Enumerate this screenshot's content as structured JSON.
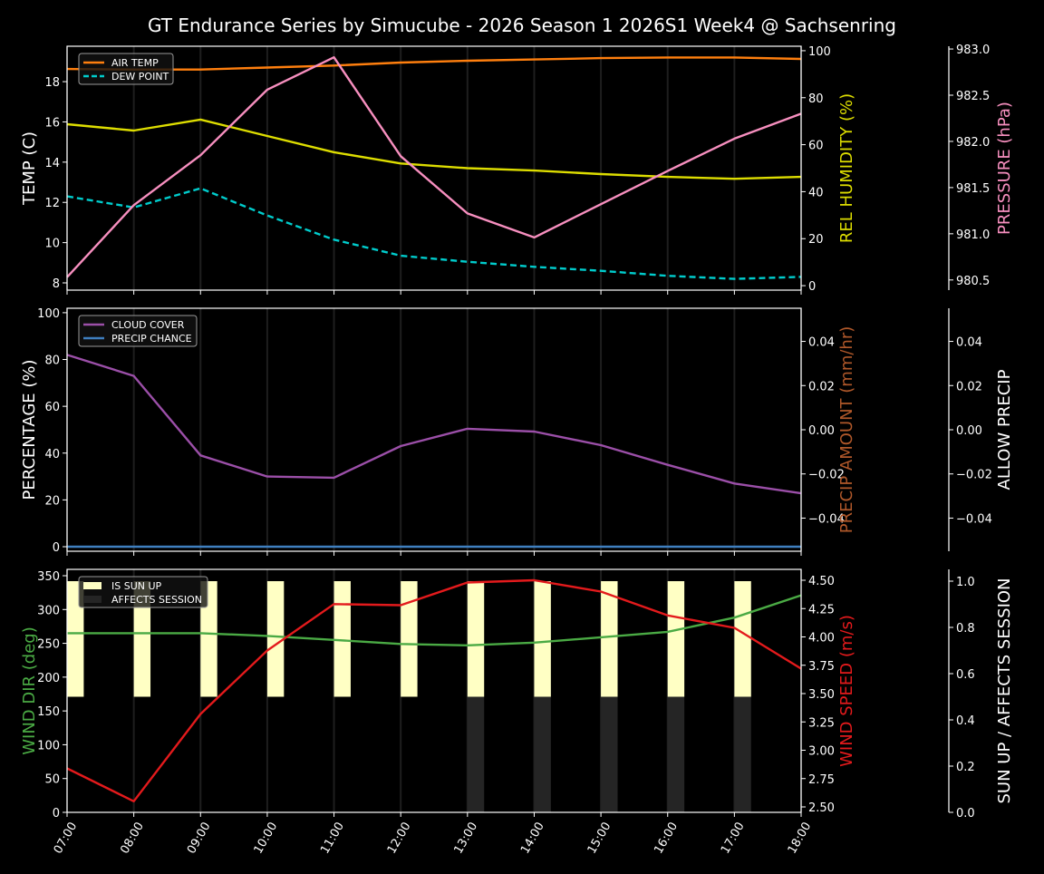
{
  "chart_data": {
    "title": "GT Endurance Series by Simucube - 2026 Season 1 2026S1 Week4 @ Sachsenring",
    "x_ticks": [
      "07:00",
      "08:00",
      "09:00",
      "10:00",
      "11:00",
      "12:00",
      "13:00",
      "14:00",
      "15:00",
      "16:00",
      "17:00",
      "18:00"
    ],
    "panels": [
      {
        "type": "line",
        "axes": [
          {
            "label": "TEMP (C)",
            "color": "#ffffff",
            "ylim": [
              7.64,
              19.76
            ],
            "ticks": [
              8,
              10,
              12,
              14,
              16,
              18
            ],
            "tick_labels": [
              "8",
              "10",
              "12",
              "14",
              "16",
              "18"
            ]
          },
          {
            "label": "REL HUMIDITY (%)",
            "color": "#dddd00",
            "ylim": [
              -1.9,
              101.9
            ],
            "ticks": [
              0,
              20,
              40,
              60,
              80,
              100
            ],
            "tick_labels": [
              "0",
              "20",
              "40",
              "60",
              "80",
              "100"
            ]
          },
          {
            "label": "PRESSURE (hPa)",
            "color": "#f78fbf",
            "ylim": [
              980.39,
              983.03
            ],
            "ticks": [
              980.5,
              981.0,
              981.5,
              982.0,
              982.5,
              983.0
            ],
            "tick_labels": [
              "980.5",
              "981.0",
              "981.5",
              "982.0",
              "982.5",
              "983.0"
            ]
          }
        ],
        "series": [
          {
            "name": "AIR TEMP",
            "axis": 0,
            "color": "#ff7f0e",
            "dash": false,
            "values": [
              18.63,
              18.6,
              18.6,
              18.7,
              18.8,
              18.95,
              19.04,
              19.1,
              19.17,
              19.2,
              19.2,
              19.13
            ]
          },
          {
            "name": "DEW POINT",
            "axis": 0,
            "color": "#00cccc",
            "dash": true,
            "values": [
              12.3,
              11.75,
              12.7,
              11.35,
              10.15,
              9.35,
              9.05,
              8.8,
              8.6,
              8.35,
              8.2,
              8.3
            ]
          },
          {
            "axis": 1,
            "color": "#dddd00",
            "dash": false,
            "values": [
              68.7,
              66,
              70.7,
              63.7,
              56.8,
              52,
              50,
              49,
              47.5,
              46.3,
              45.5,
              46.3
            ]
          },
          {
            "axis": 2,
            "color": "#f78fbf",
            "dash": false,
            "values": [
              980.53,
              981.31,
              981.85,
              982.56,
              982.91,
              981.84,
              981.22,
              980.96,
              981.32,
              981.68,
              982.03,
              982.3
            ]
          }
        ],
        "legend": [
          "AIR TEMP",
          "DEW POINT"
        ]
      },
      {
        "type": "line",
        "axes": [
          {
            "label": "PERCENTAGE (%)",
            "color": "#ffffff",
            "ylim": [
              -1.94,
              101.9
            ],
            "ticks": [
              0,
              20,
              40,
              60,
              80,
              100
            ],
            "tick_labels": [
              "0",
              "20",
              "40",
              "60",
              "80",
              "100"
            ]
          },
          {
            "label": "PRECIP AMOUNT (mm/hr)",
            "color": "#b0582a",
            "ylim": [
              -0.055,
              0.055
            ],
            "ticks": [
              -0.04,
              -0.02,
              0,
              0.02,
              0.04
            ],
            "tick_labels": [
              "−0.04",
              "−0.02",
              "0.00",
              "0.02",
              "0.04"
            ]
          },
          {
            "label": "ALLOW PRECIP",
            "color": "#ffffff",
            "ylim": [
              -0.055,
              0.055
            ],
            "ticks": [
              -0.04,
              -0.02,
              0,
              0.02,
              0.04
            ],
            "tick_labels": [
              "−0.04",
              "−0.02",
              "0.00",
              "0.02",
              "0.04"
            ]
          }
        ],
        "series": [
          {
            "name": "CLOUD COVER",
            "axis": 0,
            "color": "#9b4fa8",
            "dash": false,
            "values": [
              82,
              73,
              39,
              30,
              29.5,
              43,
              50.4,
              49.2,
              43.4,
              35,
              27,
              22.8
            ]
          },
          {
            "name": "PRECIP CHANCE",
            "axis": 0,
            "color": "#3f7fbf",
            "dash": false,
            "values": [
              0,
              0,
              0,
              0,
              0,
              0,
              0,
              0,
              0,
              0,
              0,
              0
            ]
          }
        ],
        "legend": [
          "CLOUD COVER",
          "PRECIP CHANCE"
        ]
      },
      {
        "type": "line",
        "axes": [
          {
            "label": "WIND DIR (deg)",
            "color": "#4aaa44",
            "ylim": [
              0,
              359.4
            ],
            "ticks": [
              0,
              50,
              100,
              150,
              200,
              250,
              300,
              350
            ],
            "tick_labels": [
              "0",
              "50",
              "100",
              "150",
              "200",
              "250",
              "300",
              "350"
            ]
          },
          {
            "label": "WIND SPEED (m/s)",
            "color": "#e31a1c",
            "ylim": [
              2.452,
              4.596
            ],
            "ticks": [
              2.5,
              2.75,
              3.0,
              3.25,
              3.5,
              3.75,
              4.0,
              4.25,
              4.5
            ],
            "tick_labels": [
              "2.50",
              "2.75",
              "3.00",
              "3.25",
              "3.50",
              "3.75",
              "4.00",
              "4.25",
              "4.50"
            ]
          },
          {
            "label": "SUN UP / AFFECTS SESSION",
            "color": "#ffffff",
            "ylim": [
              0,
              1.051
            ],
            "ticks": [
              0,
              0.2,
              0.4,
              0.6,
              0.8,
              1.0
            ],
            "tick_labels": [
              "0.0",
              "0.2",
              "0.4",
              "0.6",
              "0.8",
              "1.0"
            ]
          }
        ],
        "bars": [
          {
            "name": "IS SUN UP",
            "axis": 2,
            "color": "#ffffc4",
            "base": 0.5,
            "top": 1.0,
            "values": [
              1,
              1,
              1,
              1,
              1,
              1,
              1,
              1,
              1,
              1,
              1,
              0
            ]
          },
          {
            "name": "AFFECTS SESSION",
            "axis": 2,
            "color": "#252525",
            "base": 0.0,
            "top": 0.5,
            "values": [
              0,
              0,
              0,
              0,
              0,
              0,
              1,
              1,
              1,
              1,
              1,
              0
            ]
          }
        ],
        "series": [
          {
            "axis": 0,
            "color": "#4aaa44",
            "dash": false,
            "values": [
              265,
              265,
              265,
              261,
              255,
              249,
              247,
              251,
              259,
              267,
              288,
              321
            ]
          },
          {
            "axis": 1,
            "color": "#e31a1c",
            "dash": false,
            "values": [
              2.84,
              2.55,
              3.32,
              3.88,
              4.29,
              4.28,
              4.48,
              4.5,
              4.4,
              4.19,
              4.08,
              3.72
            ]
          }
        ],
        "legend": [
          "IS SUN UP",
          "AFFECTS SESSION"
        ]
      }
    ]
  }
}
